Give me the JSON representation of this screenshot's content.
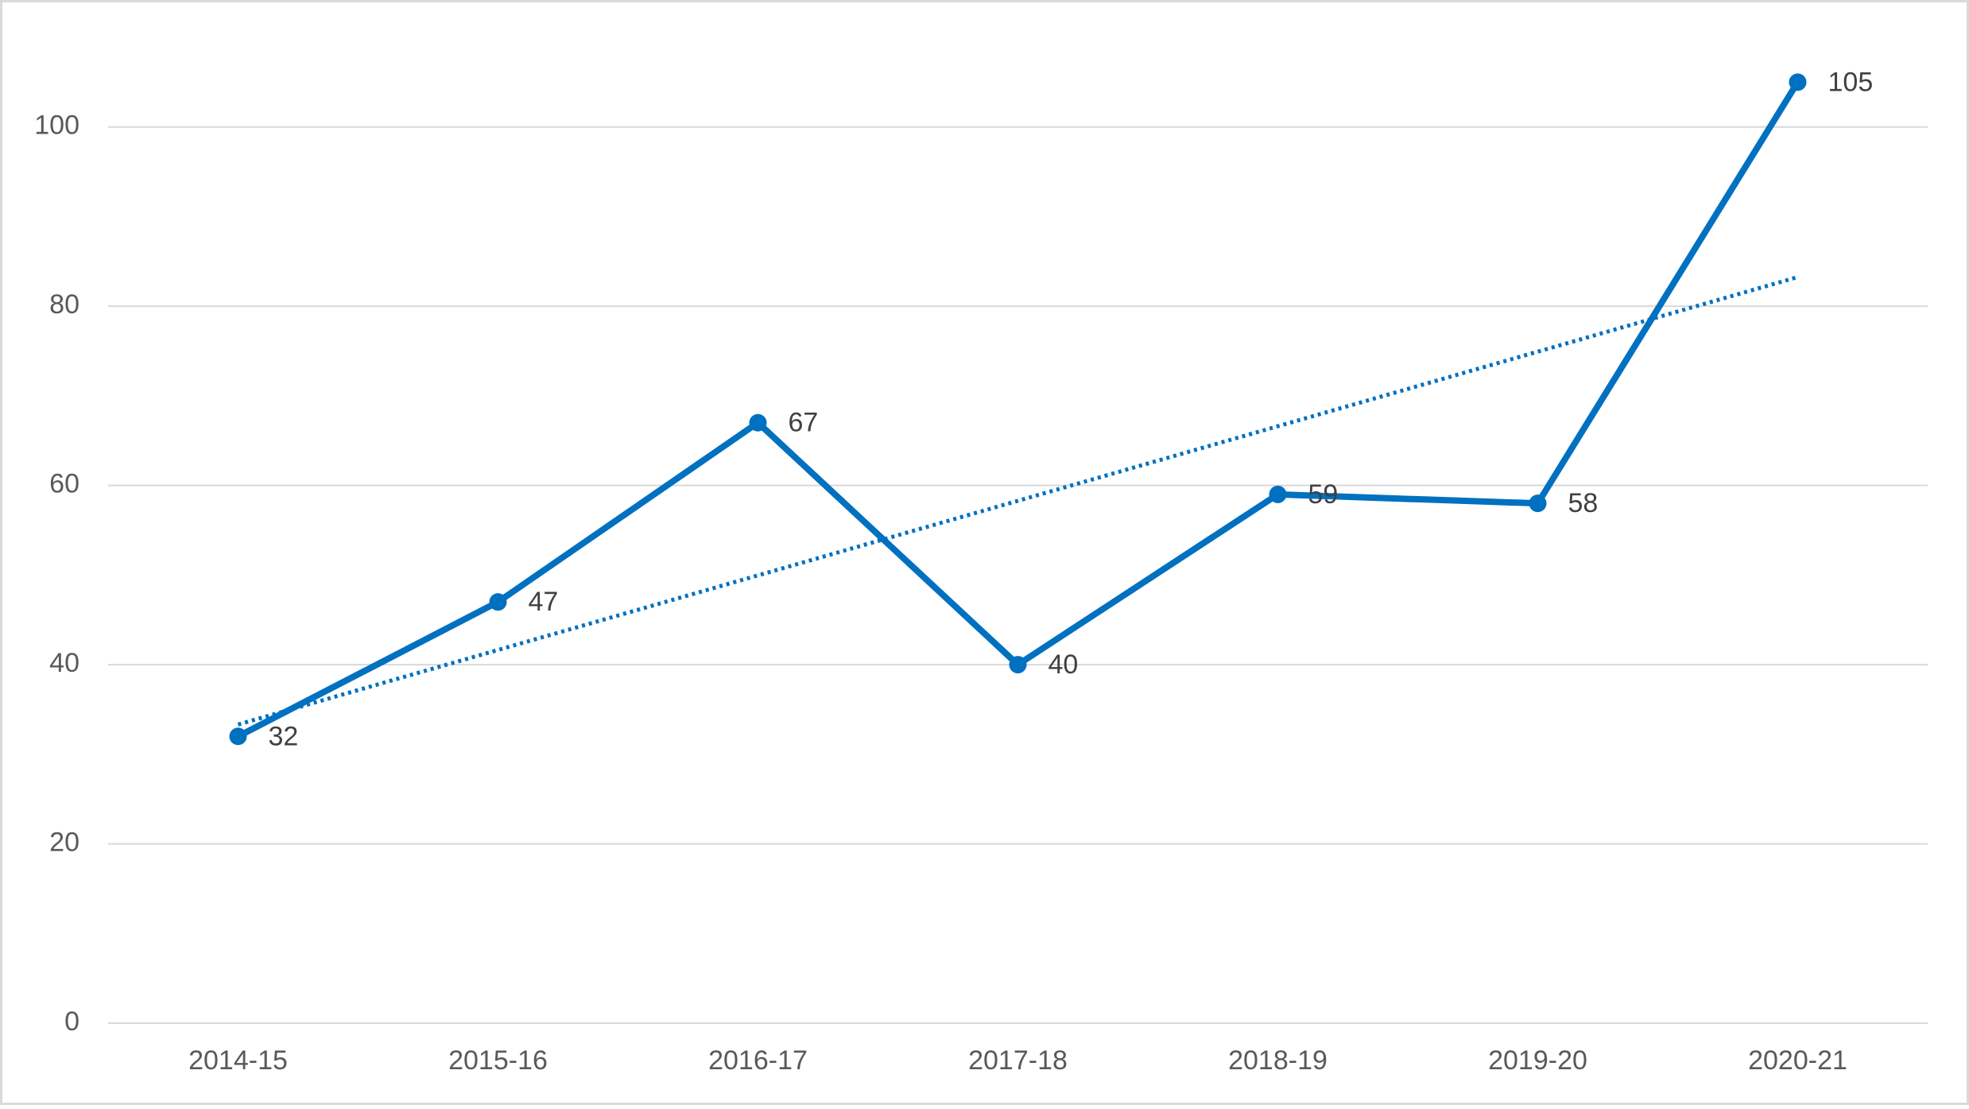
{
  "chart_data": {
    "type": "line",
    "categories": [
      "2014-15",
      "2015-16",
      "2016-17",
      "2017-18",
      "2018-19",
      "2019-20",
      "2020-21"
    ],
    "series": [
      {
        "color": "#0070c0",
        "values": [
          32,
          47,
          67,
          40,
          59,
          58,
          105
        ]
      }
    ],
    "ylim": [
      0,
      110
    ],
    "yticks": [
      0,
      20,
      40,
      60,
      80,
      100
    ],
    "grid": true,
    "data_labels": true,
    "trendline": "linear"
  }
}
